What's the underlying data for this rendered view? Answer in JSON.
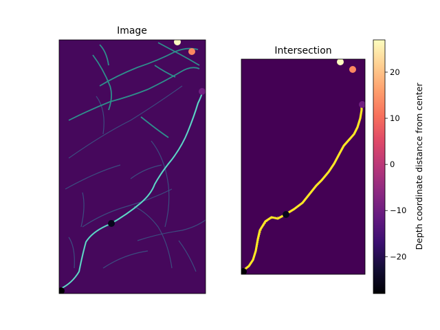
{
  "chart_data": [
    {
      "type": "image",
      "title": "Image",
      "description_of_content": "maximum-intensity projection of neurite structures (viridis colormap)",
      "markers": [
        {
          "label": "path-start",
          "depth": -27
        },
        {
          "label": "midpoint",
          "depth": -26
        },
        {
          "label": "near-end",
          "depth": -7
        },
        {
          "label": "top-1",
          "depth": 21
        },
        {
          "label": "top-2",
          "depth": 27
        }
      ]
    },
    {
      "type": "mask",
      "title": "Intersection",
      "path_color": "#fde725",
      "background_color": "#440154",
      "markers": [
        {
          "label": "path-start",
          "depth": -27
        },
        {
          "label": "midpoint",
          "depth": -26
        },
        {
          "label": "near-end",
          "depth": -7
        },
        {
          "label": "top-1",
          "depth": 21
        },
        {
          "label": "top-2",
          "depth": 27
        }
      ]
    }
  ],
  "colorbar": {
    "label": "Depth coordinate distance from center",
    "colormap": "magma",
    "vmin": -28,
    "vmax": 27,
    "ticks": [
      -20,
      -10,
      0,
      10,
      20
    ]
  }
}
